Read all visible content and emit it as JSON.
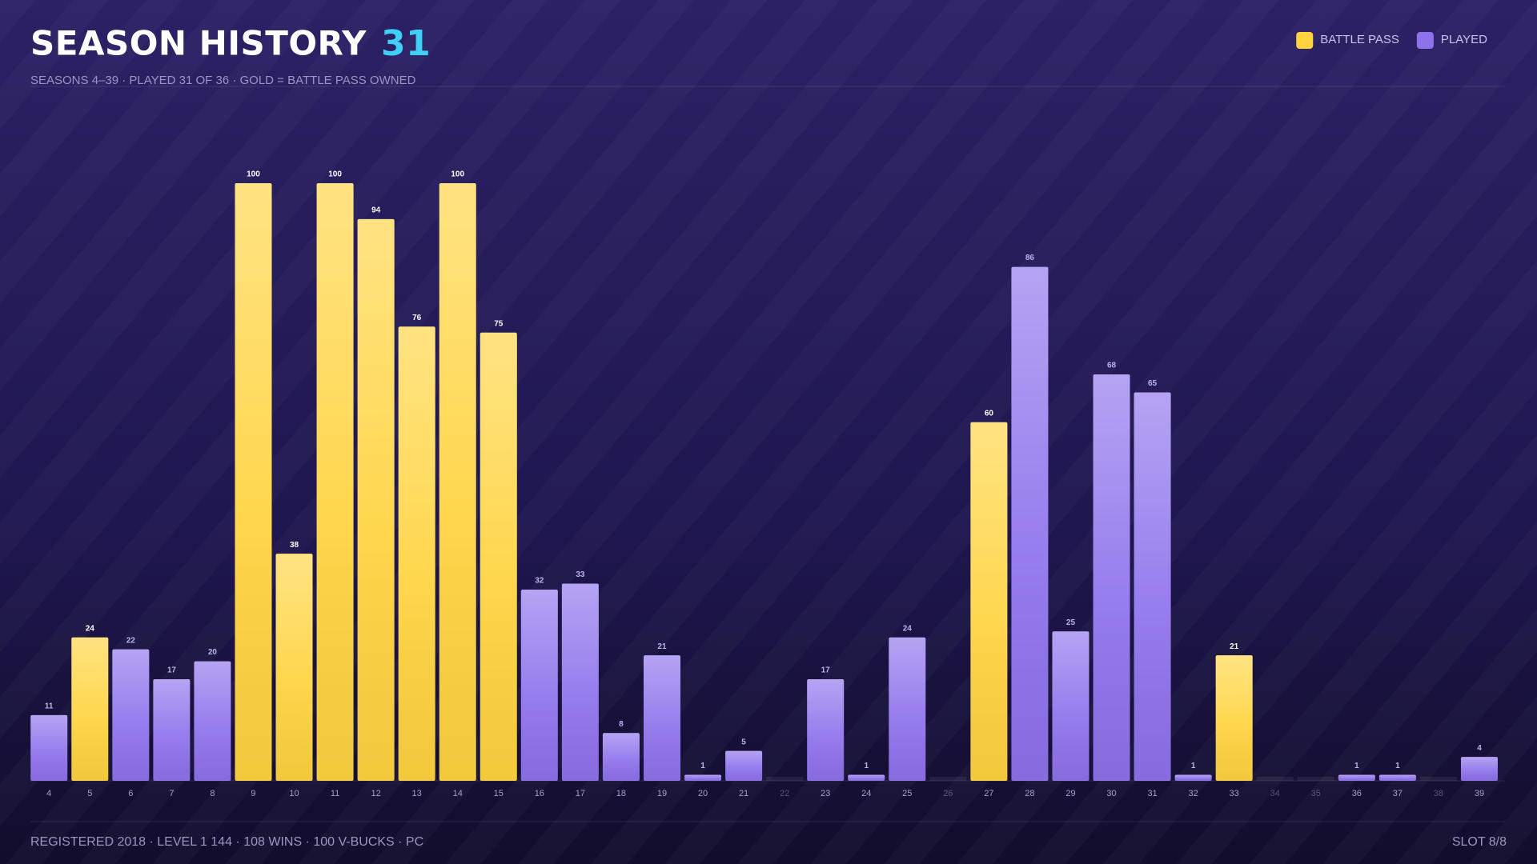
{
  "chart_data": {
    "type": "bar",
    "title": "SEASON HISTORY",
    "title_count": "31",
    "subtitle": "SEASONS 4–39  ·  PLAYED 31 OF 36  ·  GOLD = BATTLE PASS OWNED",
    "footer_left": "REGISTERED 2018  ·  LEVEL 1 144  ·  108 WINS  ·  100 V-BUCKS  ·  PC",
    "footer_right": "SLOT 8/8",
    "legend": "top-right",
    "categories": [
      4,
      5,
      6,
      7,
      8,
      9,
      10,
      11,
      12,
      13,
      14,
      15,
      16,
      17,
      18,
      19,
      20,
      21,
      22,
      23,
      24,
      25,
      26,
      27,
      28,
      29,
      30,
      31,
      32,
      33,
      34,
      35,
      36,
      37,
      38,
      39
    ],
    "series": [
      {
        "name": "BATTLE PASS",
        "color": "#ffd43f",
        "values": [
          null,
          24,
          null,
          null,
          null,
          100,
          38,
          100,
          94,
          76,
          100,
          75,
          null,
          null,
          null,
          null,
          null,
          null,
          null,
          null,
          null,
          null,
          null,
          60,
          null,
          null,
          null,
          null,
          null,
          21,
          null,
          null,
          null,
          null,
          null,
          null
        ]
      },
      {
        "name": "PLAYED",
        "color": "#8e72ec",
        "values": [
          11,
          null,
          22,
          17,
          20,
          null,
          null,
          null,
          null,
          null,
          null,
          null,
          32,
          33,
          8,
          21,
          1,
          5,
          null,
          17,
          1,
          24,
          null,
          null,
          86,
          25,
          68,
          65,
          1,
          null,
          null,
          null,
          1,
          1,
          null,
          4
        ]
      }
    ],
    "ylim": [
      0,
      100
    ]
  }
}
